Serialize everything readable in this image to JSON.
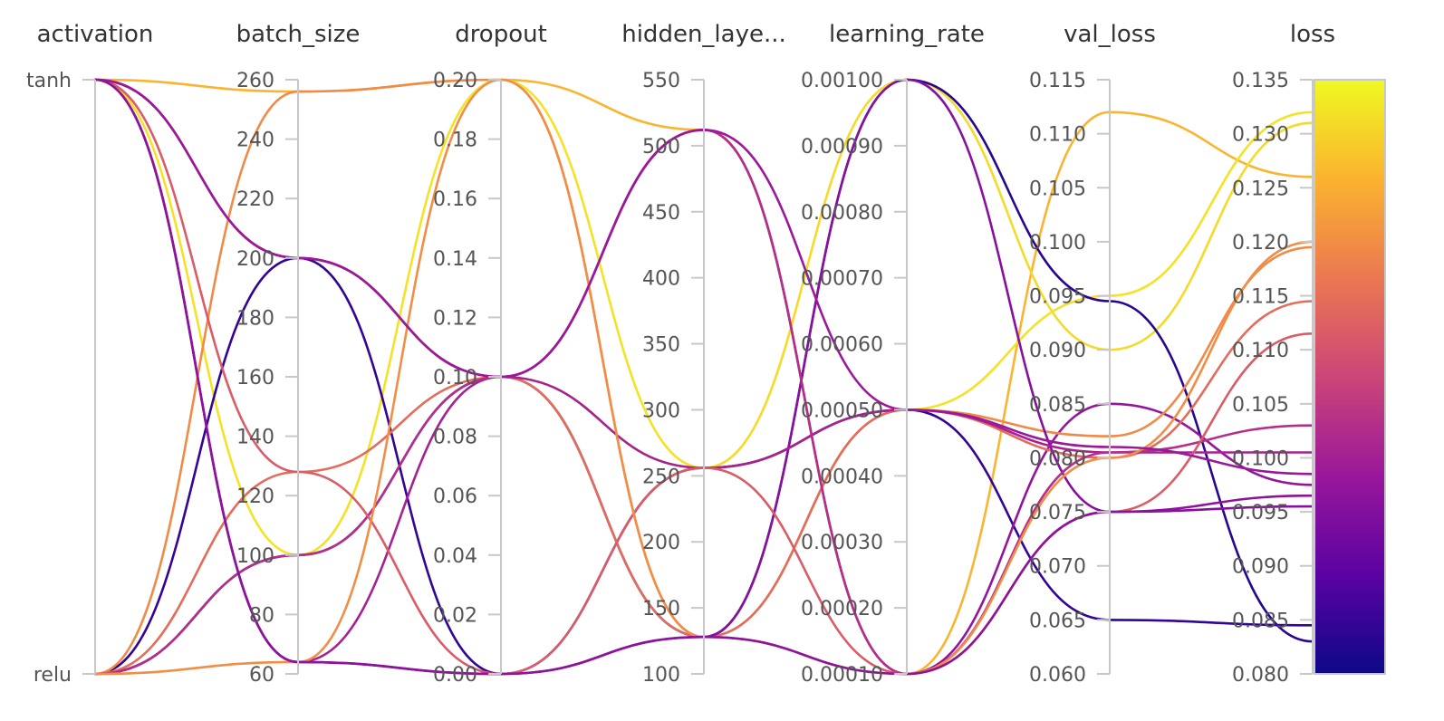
{
  "chart_data": {
    "type": "parallel_coordinates",
    "axes": [
      {
        "key": "activation",
        "label": "activation",
        "kind": "categorical",
        "categories": [
          "relu",
          "tanh"
        ],
        "tick_labels": [
          "tanh",
          "relu"
        ]
      },
      {
        "key": "batch_size",
        "label": "batch_size",
        "kind": "numeric",
        "range": [
          60,
          260
        ],
        "tick_labels": [
          "260",
          "240",
          "220",
          "200",
          "180",
          "160",
          "140",
          "120",
          "100",
          "80",
          "60"
        ]
      },
      {
        "key": "dropout",
        "label": "dropout",
        "kind": "numeric",
        "range": [
          0,
          0.2
        ],
        "tick_labels": [
          "0.20",
          "0.18",
          "0.16",
          "0.14",
          "0.12",
          "0.10",
          "0.08",
          "0.06",
          "0.04",
          "0.02",
          "0.00"
        ]
      },
      {
        "key": "hidden_layer",
        "label": "hidden_laye...",
        "kind": "numeric",
        "range": [
          100,
          550
        ],
        "tick_labels": [
          "550",
          "500",
          "450",
          "400",
          "350",
          "300",
          "250",
          "200",
          "150",
          "100"
        ]
      },
      {
        "key": "learning_rate",
        "label": "learning_rate",
        "kind": "numeric",
        "range": [
          0.0001,
          0.001
        ],
        "tick_labels": [
          "0.00100",
          "0.00090",
          "0.00080",
          "0.00070",
          "0.00060",
          "0.00050",
          "0.00040",
          "0.00030",
          "0.00020",
          "0.00010"
        ]
      },
      {
        "key": "val_loss",
        "label": "val_loss",
        "kind": "numeric",
        "range": [
          0.06,
          0.115
        ],
        "tick_labels": [
          "0.115",
          "0.110",
          "0.105",
          "0.100",
          "0.095",
          "0.090",
          "0.085",
          "0.080",
          "0.075",
          "0.070",
          "0.065",
          "0.060"
        ]
      },
      {
        "key": "loss",
        "label": "loss",
        "kind": "numeric",
        "range": [
          0.08,
          0.135
        ],
        "tick_labels": [
          "0.135",
          "0.130",
          "0.125",
          "0.120",
          "0.115",
          "0.110",
          "0.105",
          "0.100",
          "0.095",
          "0.090",
          "0.085",
          "0.080"
        ]
      }
    ],
    "color_by": "loss",
    "colorscale": [
      "#0d0887",
      "#5b02a3",
      "#9a179b",
      "#cb4678",
      "#eb7852",
      "#fbb32f",
      "#f0f921"
    ],
    "colorbar_range": [
      0.08,
      0.135
    ],
    "series": [
      {
        "values": [
          "tanh",
          256,
          0.2,
          512,
          0.0001,
          0.112,
          0.126
        ]
      },
      {
        "values": [
          "tanh",
          200,
          0.1,
          256,
          0.001,
          0.09,
          0.131
        ]
      },
      {
        "values": [
          "tanh",
          100,
          0.2,
          256,
          0.0005,
          0.095,
          0.132
        ]
      },
      {
        "values": [
          "relu",
          100,
          0.1,
          128,
          0.001,
          0.0945,
          0.083
        ]
      },
      {
        "values": [
          "relu",
          200,
          0.0,
          256,
          0.0005,
          0.065,
          0.0845
        ]
      },
      {
        "values": [
          "tanh",
          200,
          0.1,
          512,
          0.0001,
          0.085,
          0.0975
        ]
      },
      {
        "values": [
          "relu",
          256,
          0.2,
          128,
          0.0005,
          0.082,
          0.1195
        ]
      },
      {
        "values": [
          "relu",
          128,
          0.1,
          128,
          0.0005,
          0.08,
          0.1145
        ]
      },
      {
        "values": [
          "tanh",
          64,
          0.0,
          128,
          0.001,
          0.075,
          0.0955
        ]
      },
      {
        "values": [
          "tanh",
          64,
          0.1,
          256,
          0.0005,
          0.0805,
          0.1005
        ]
      },
      {
        "values": [
          "relu",
          100,
          0.1,
          512,
          0.0001,
          0.0805,
          0.103
        ]
      },
      {
        "values": [
          "tanh",
          128,
          0.0,
          256,
          0.0001,
          0.075,
          0.1115
        ]
      },
      {
        "values": [
          "relu",
          64,
          0.2,
          128,
          0.0001,
          0.08,
          0.12
        ]
      },
      {
        "values": [
          "tanh",
          200,
          0.1,
          512,
          0.0005,
          0.081,
          0.0985
        ]
      },
      {
        "values": [
          "tanh",
          64,
          0.0,
          128,
          0.0001,
          0.075,
          0.0965
        ]
      }
    ]
  }
}
